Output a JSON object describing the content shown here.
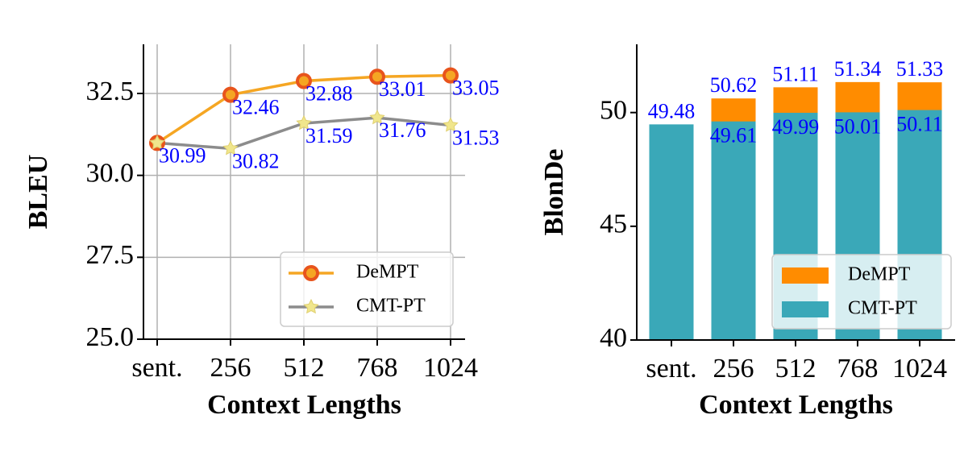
{
  "chart_data": [
    {
      "type": "line",
      "y_label": "BLEU",
      "x_label": "Context Lengths",
      "categories": [
        "sent.",
        "256",
        "512",
        "768",
        "1024"
      ],
      "series": [
        {
          "name": "DeMPT",
          "color": "#f5a623",
          "marker_color": "#e8541c",
          "marker": "circle",
          "values": [
            30.99,
            32.46,
            32.88,
            33.01,
            33.05
          ],
          "value_labels": [
            null,
            "32.46",
            "32.88",
            "33.01",
            "33.05"
          ]
        },
        {
          "name": "CMT-PT",
          "color": "#8c8c8c",
          "marker_color": "#f0e68c",
          "marker": "star",
          "values": [
            30.99,
            30.82,
            31.59,
            31.76,
            31.53
          ]
        }
      ],
      "ylim": [
        25,
        34
      ],
      "yticks": [
        {
          "value": 25,
          "label": "25.0"
        },
        27.5,
        {
          "value": 30,
          "label": "30.0"
        },
        32.5
      ],
      "grid": true,
      "legend": "lower right"
    },
    {
      "type": "bar",
      "bar_mode": "overlay",
      "y_label": "BlonDe",
      "x_label": "Context Lengths",
      "categories": [
        "sent.",
        "256",
        "512",
        "768",
        "1024"
      ],
      "series": [
        {
          "name": "DeMPT",
          "color": "#ff8c00",
          "values": [
            null,
            50.62,
            51.11,
            51.34,
            51.33
          ]
        },
        {
          "name": "CMT-PT",
          "color": "#3aa8b8",
          "values": [
            49.48,
            49.61,
            49.99,
            50.01,
            50.11
          ]
        }
      ],
      "ylim": [
        40,
        53
      ],
      "yticks": [
        40,
        45,
        50
      ],
      "grid": false,
      "legend": "lower right"
    }
  ]
}
